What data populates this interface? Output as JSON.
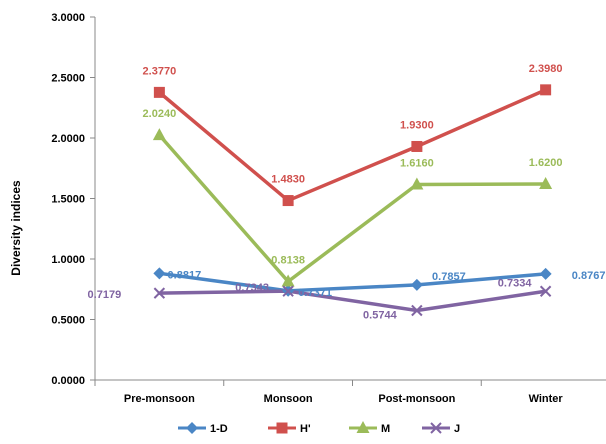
{
  "chart_data": {
    "type": "line",
    "title": "",
    "xlabel": "",
    "ylabel": "Diversity indices",
    "ylim": [
      0,
      3
    ],
    "yticks": [
      "0.0000",
      "0.5000",
      "1.0000",
      "1.5000",
      "2.0000",
      "2.5000",
      "3.0000"
    ],
    "categories": [
      "Pre-monsoon",
      "Monsoon",
      "Post-monsoon",
      "Winter"
    ],
    "grid": false,
    "legend_position": "bottom",
    "series": [
      {
        "name": "1-D",
        "color": "#4A86C5",
        "marker": "diamond",
        "values": [
          0.8817,
          0.7371,
          0.7857,
          0.8767
        ],
        "labels": [
          "0.8817",
          "0.7371",
          "0.7857",
          "0.8767"
        ]
      },
      {
        "name": "H'",
        "color": "#D0504D",
        "marker": "square",
        "values": [
          2.377,
          1.483,
          1.93,
          2.398
        ],
        "labels": [
          "2.3770",
          "1.4830",
          "1.9300",
          "2.3980"
        ]
      },
      {
        "name": "M",
        "color": "#9BBB59",
        "marker": "triangle",
        "values": [
          2.024,
          0.8138,
          1.616,
          1.62
        ],
        "labels": [
          "2.0240",
          "0.8138",
          "1.6160",
          "1.6200"
        ]
      },
      {
        "name": "J",
        "color": "#8064A2",
        "marker": "x",
        "values": [
          0.7179,
          0.7343,
          0.5744,
          0.7334
        ],
        "labels": [
          "0.7179",
          "0.7343",
          "0.5744",
          "0.7334"
        ]
      }
    ]
  }
}
